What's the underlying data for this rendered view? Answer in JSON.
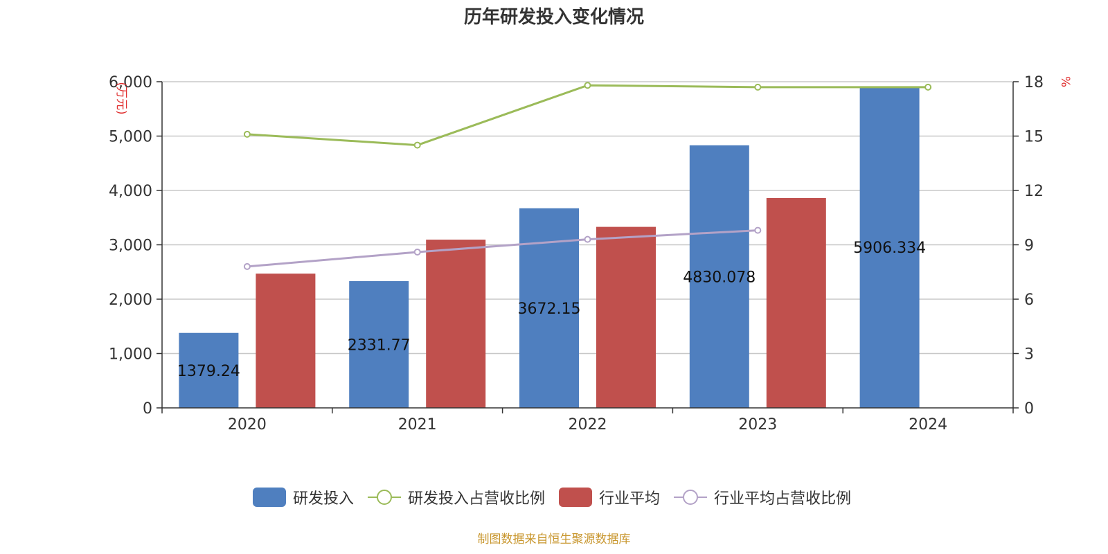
{
  "title": "历年研发投入变化情况",
  "source": "制图数据来自恒生聚源数据库",
  "chart_data": {
    "type": "bar",
    "categories": [
      "2020",
      "2021",
      "2022",
      "2023",
      "2024"
    ],
    "y_left": {
      "label": "(万元)",
      "range": [
        0,
        6000
      ],
      "ticks": [
        0,
        1000,
        2000,
        3000,
        4000,
        5000,
        6000
      ],
      "tick_labels": [
        "0",
        "1,000",
        "2,000",
        "3,000",
        "4,000",
        "5,000",
        "6,000"
      ]
    },
    "y_right": {
      "label": "%",
      "range": [
        0,
        18
      ],
      "ticks": [
        0,
        3,
        6,
        9,
        12,
        15,
        18
      ],
      "tick_labels": [
        "0",
        "3",
        "6",
        "9",
        "12",
        "15",
        "18"
      ]
    },
    "grid": true,
    "legend_position": "bottom",
    "series": [
      {
        "name": "研发投入",
        "type": "bar",
        "axis": "left",
        "color": "#4f7fbf",
        "values": [
          1379.24,
          2331.77,
          3672.15,
          4830.078,
          5906.334
        ],
        "data_labels": [
          "1379.24",
          "2331.77",
          "3672.15",
          "4830.078",
          "5906.334"
        ]
      },
      {
        "name": "研发投入占营收比例",
        "type": "line",
        "axis": "right",
        "color": "#9bbb59",
        "values": [
          15.1,
          14.5,
          17.8,
          17.7,
          17.7
        ]
      },
      {
        "name": "行业平均",
        "type": "bar",
        "axis": "left",
        "color": "#c0504d",
        "values": [
          2470,
          3095,
          3330,
          3860,
          null
        ]
      },
      {
        "name": "行业平均占营收比例",
        "type": "line",
        "axis": "right",
        "color": "#b3a2c7",
        "values": [
          7.8,
          8.6,
          9.3,
          9.8,
          null
        ]
      }
    ]
  }
}
